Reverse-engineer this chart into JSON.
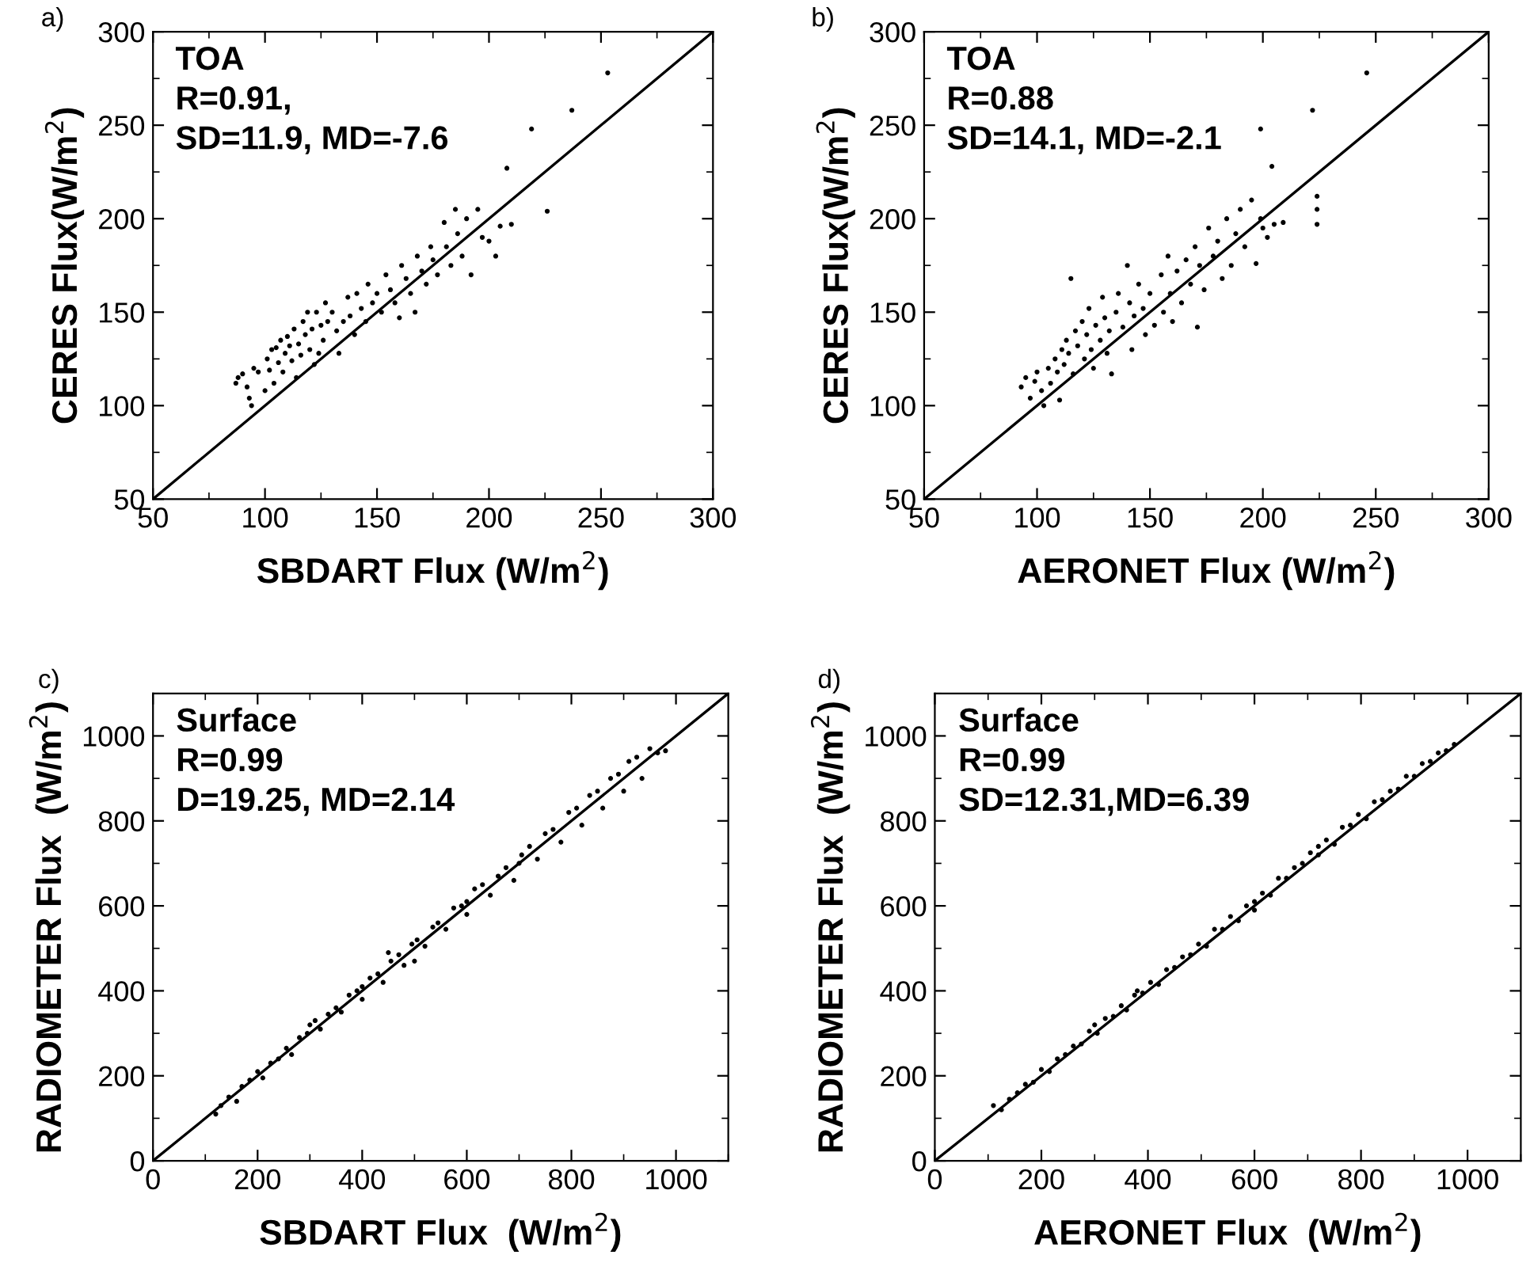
{
  "chart_data": [
    {
      "type": "scatter",
      "title": "a)",
      "xlabel": "SBDART Flux (W/m$^{2}$)",
      "ylabel": "CERES Flux(W/m$^{2}$)",
      "annotations": [
        "TOA",
        "R=0.91,",
        "SD=11.9, MD=-7.6"
      ],
      "xlim": [
        50,
        300
      ],
      "ylim": [
        50,
        300
      ],
      "xticks": [
        50,
        100,
        150,
        200,
        250,
        300
      ],
      "yticks": [
        50,
        100,
        150,
        200,
        250,
        300
      ],
      "grid": false,
      "legend": false,
      "marker": "circle",
      "series": [
        {
          "color": "#000000",
          "x": [
            87,
            88,
            90,
            92,
            93,
            94,
            95,
            97,
            100,
            101,
            102,
            103,
            104,
            105,
            106,
            107,
            108,
            109,
            110,
            111,
            112,
            113,
            114,
            115,
            116,
            117,
            118,
            119,
            120,
            121,
            122,
            123,
            124,
            125,
            126,
            127,
            128,
            130,
            132,
            133,
            135,
            137,
            138,
            140,
            141,
            143,
            145,
            146,
            148,
            150,
            152,
            154,
            156,
            158,
            160,
            161,
            163,
            165,
            167,
            168,
            170,
            172,
            174,
            175,
            177,
            180,
            181,
            183,
            185,
            186,
            188,
            190,
            192,
            195,
            197,
            200,
            203,
            205,
            208,
            210,
            219,
            226,
            237,
            253
          ],
          "values": [
            112,
            115,
            117,
            110,
            104,
            100,
            120,
            118,
            108,
            125,
            119,
            130,
            112,
            131,
            123,
            135,
            118,
            128,
            137,
            132,
            124,
            141,
            115,
            133,
            127,
            145,
            138,
            150,
            130,
            141,
            122,
            150,
            128,
            143,
            135,
            155,
            145,
            150,
            140,
            128,
            145,
            158,
            148,
            138,
            160,
            152,
            145,
            165,
            155,
            160,
            150,
            170,
            162,
            155,
            147,
            175,
            168,
            160,
            150,
            180,
            172,
            165,
            185,
            178,
            170,
            198,
            185,
            175,
            205,
            192,
            180,
            200,
            170,
            205,
            190,
            188,
            180,
            196,
            227,
            197,
            248,
            204,
            258,
            278
          ]
        },
        {
          "type": "line",
          "color": "#000000",
          "marker": "none",
          "line_style": "solid",
          "x": [
            50,
            300
          ],
          "values": [
            50,
            300
          ]
        }
      ]
    },
    {
      "type": "scatter",
      "title": "b)",
      "xlabel": "AERONET Flux (W/m$^{2}$)",
      "ylabel": "CERES Flux(W/m$^{2}$)",
      "annotations": [
        "TOA",
        "R=0.88",
        "SD=14.1, MD=-2.1"
      ],
      "xlim": [
        50,
        300
      ],
      "ylim": [
        50,
        300
      ],
      "xticks": [
        50,
        100,
        150,
        200,
        250,
        300
      ],
      "yticks": [
        50,
        100,
        150,
        200,
        250,
        300
      ],
      "grid": false,
      "legend": false,
      "marker": "circle",
      "series": [
        {
          "color": "#000000",
          "x": [
            93,
            95,
            97,
            99,
            100,
            102,
            103,
            105,
            106,
            108,
            109,
            110,
            111,
            112,
            113,
            114,
            115,
            116,
            117,
            118,
            120,
            121,
            122,
            123,
            124,
            125,
            126,
            128,
            129,
            130,
            131,
            132,
            133,
            135,
            136,
            138,
            140,
            141,
            142,
            143,
            145,
            147,
            148,
            150,
            152,
            155,
            156,
            158,
            159,
            160,
            162,
            164,
            166,
            168,
            170,
            171,
            172,
            174,
            176,
            178,
            180,
            182,
            184,
            186,
            188,
            190,
            192,
            195,
            197,
            199,
            200,
            202,
            205,
            209,
            199,
            204,
            222,
            224,
            224,
            224,
            246
          ],
          "values": [
            110,
            115,
            104,
            113,
            118,
            108,
            100,
            120,
            112,
            125,
            118,
            103,
            130,
            122,
            135,
            128,
            168,
            117,
            140,
            132,
            145,
            125,
            138,
            152,
            130,
            120,
            143,
            135,
            158,
            147,
            128,
            140,
            117,
            150,
            160,
            142,
            175,
            155,
            130,
            148,
            165,
            152,
            138,
            160,
            143,
            170,
            150,
            180,
            160,
            145,
            172,
            155,
            178,
            165,
            185,
            142,
            175,
            162,
            195,
            180,
            188,
            168,
            200,
            175,
            192,
            205,
            185,
            210,
            176,
            200,
            195,
            190,
            197,
            198,
            248,
            228,
            258,
            212,
            205,
            197,
            278
          ]
        },
        {
          "type": "line",
          "color": "#000000",
          "marker": "none",
          "line_style": "solid",
          "x": [
            50,
            300
          ],
          "values": [
            50,
            300
          ]
        }
      ]
    },
    {
      "type": "scatter",
      "title": "c)",
      "xlabel": "SBDART Flux  (W/m$^{2}$)",
      "ylabel": "RADIOMETER Flux  (W/m$^{2}$)",
      "annotations": [
        "Surface",
        "R=0.99",
        "D=19.25, MD=2.14"
      ],
      "xlim": [
        0,
        1100
      ],
      "ylim": [
        0,
        1100
      ],
      "xticks": [
        0,
        200,
        400,
        600,
        800,
        1000
      ],
      "yticks": [
        0,
        200,
        400,
        600,
        800,
        1000
      ],
      "grid": false,
      "legend": false,
      "marker": "circle",
      "series": [
        {
          "color": "#000000",
          "x": [
            120,
            130,
            145,
            160,
            170,
            185,
            200,
            210,
            225,
            240,
            255,
            265,
            280,
            295,
            310,
            320,
            335,
            350,
            360,
            375,
            390,
            400,
            415,
            430,
            440,
            455,
            470,
            480,
            495,
            505,
            520,
            535,
            545,
            560,
            575,
            590,
            600,
            615,
            630,
            645,
            660,
            675,
            690,
            705,
            720,
            735,
            750,
            765,
            780,
            795,
            810,
            820,
            835,
            850,
            860,
            875,
            890,
            900,
            910,
            925,
            935,
            950,
            965,
            980,
            500,
            450,
            300,
            700,
            400,
            600
          ],
          "values": [
            110,
            130,
            150,
            140,
            175,
            190,
            210,
            195,
            230,
            240,
            265,
            250,
            290,
            300,
            330,
            310,
            345,
            360,
            350,
            390,
            400,
            380,
            430,
            440,
            420,
            470,
            485,
            460,
            510,
            520,
            505,
            550,
            560,
            545,
            595,
            600,
            580,
            640,
            650,
            625,
            670,
            690,
            660,
            720,
            740,
            710,
            770,
            780,
            750,
            820,
            830,
            790,
            860,
            870,
            830,
            900,
            910,
            870,
            940,
            950,
            900,
            970,
            960,
            965,
            470,
            490,
            320,
            700,
            410,
            610
          ]
        },
        {
          "type": "line",
          "color": "#000000",
          "marker": "none",
          "line_style": "solid",
          "x": [
            0,
            1100
          ],
          "values": [
            0,
            1100
          ]
        }
      ]
    },
    {
      "type": "scatter",
      "title": "d)",
      "xlabel": "AERONET Flux  (W/m$^{2}$)",
      "ylabel": "RADIOMETER Flux  (W/m$^{2}$)",
      "annotations": [
        "Surface",
        "R=0.99",
        "SD=12.31,MD=6.39"
      ],
      "xlim": [
        0,
        1100
      ],
      "ylim": [
        0,
        1100
      ],
      "xticks": [
        0,
        200,
        400,
        600,
        800,
        1000
      ],
      "yticks": [
        0,
        200,
        400,
        600,
        800,
        1000
      ],
      "grid": false,
      "legend": false,
      "marker": "circle",
      "series": [
        {
          "color": "#000000",
          "x": [
            110,
            125,
            140,
            155,
            170,
            185,
            200,
            215,
            230,
            245,
            260,
            275,
            290,
            305,
            320,
            335,
            350,
            360,
            375,
            390,
            405,
            420,
            435,
            450,
            465,
            480,
            495,
            510,
            525,
            540,
            555,
            570,
            585,
            600,
            615,
            630,
            645,
            660,
            675,
            690,
            705,
            720,
            735,
            750,
            765,
            780,
            795,
            810,
            825,
            840,
            855,
            870,
            885,
            900,
            915,
            930,
            945,
            960,
            975,
            720,
            600,
            300,
            380
          ],
          "values": [
            130,
            120,
            145,
            160,
            180,
            185,
            215,
            210,
            240,
            250,
            270,
            275,
            305,
            300,
            335,
            340,
            365,
            355,
            390,
            395,
            420,
            415,
            450,
            455,
            480,
            485,
            510,
            505,
            545,
            545,
            575,
            565,
            600,
            610,
            630,
            625,
            665,
            665,
            690,
            700,
            725,
            720,
            755,
            745,
            785,
            790,
            815,
            805,
            845,
            850,
            870,
            875,
            905,
            905,
            935,
            940,
            960,
            965,
            980,
            740,
            590,
            320,
            400
          ]
        },
        {
          "type": "line",
          "color": "#000000",
          "marker": "none",
          "line_style": "solid",
          "x": [
            0,
            1100
          ],
          "values": [
            0,
            1100
          ]
        }
      ]
    }
  ]
}
